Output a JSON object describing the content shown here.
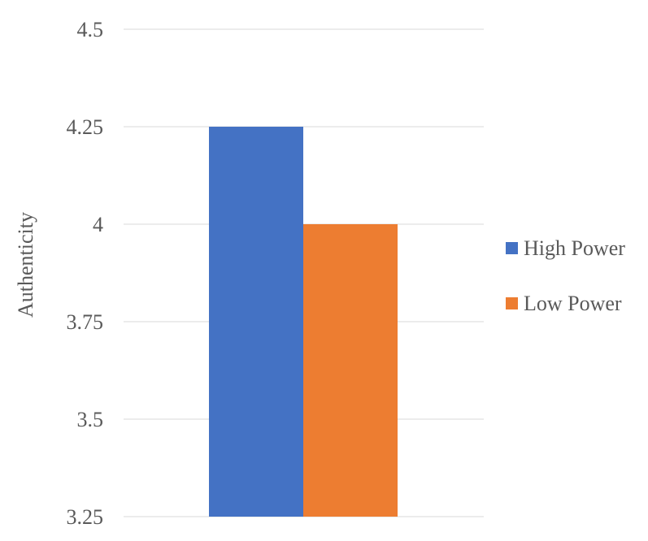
{
  "chart_data": {
    "type": "bar",
    "categories": [
      ""
    ],
    "series": [
      {
        "name": "High Power",
        "values": [
          4.25
        ],
        "color": "#4472C4"
      },
      {
        "name": "Low Power",
        "values": [
          4.0
        ],
        "color": "#ED7D31"
      }
    ],
    "title": "",
    "xlabel": "",
    "ylabel": "Authenticity",
    "ylim": [
      3.25,
      4.5
    ],
    "yticks": [
      "4.5",
      "4.25",
      "4",
      "3.75",
      "3.5",
      "3.25"
    ],
    "grid": true,
    "legend_position": "right"
  }
}
